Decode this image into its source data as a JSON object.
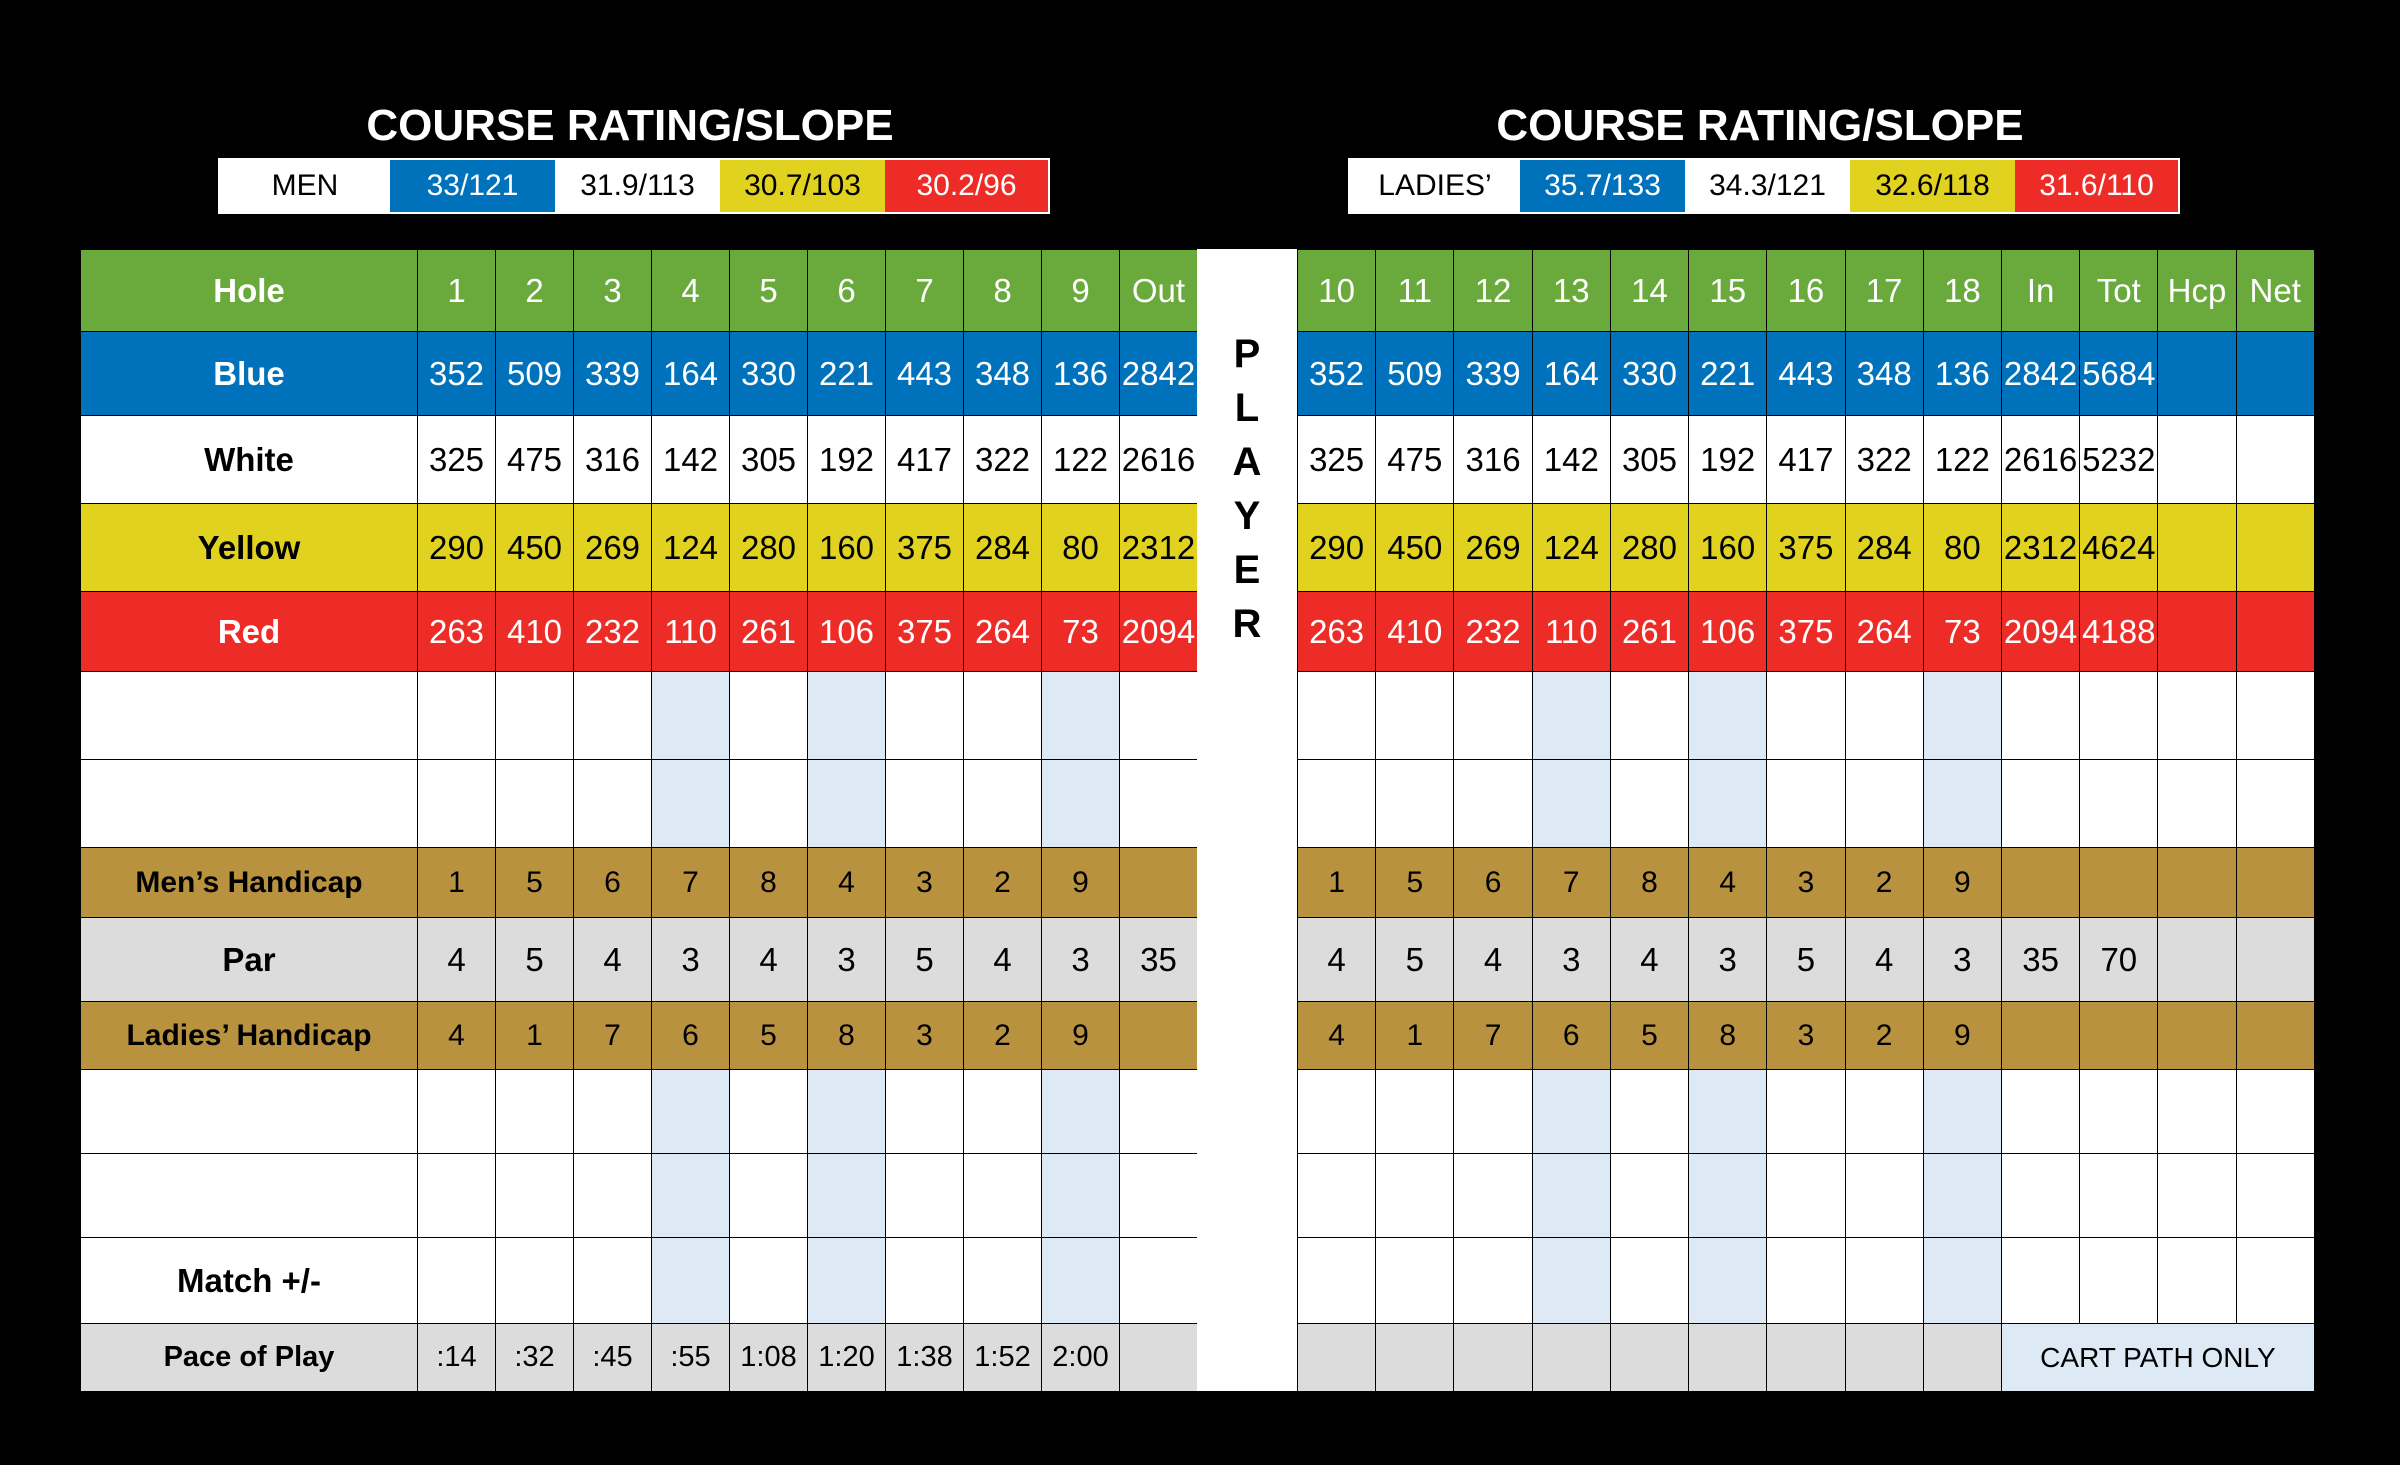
{
  "ratings": {
    "title": "COURSE RATING/SLOPE",
    "men": {
      "label": "MEN",
      "values": [
        "33/121",
        "31.9/113",
        "30.7/103",
        "30.2/96"
      ]
    },
    "ladies": {
      "label": "LADIES’",
      "values": [
        "35.7/133",
        "34.3/121",
        "32.6/118",
        "31.6/110"
      ]
    },
    "colors": [
      "#0071bb",
      "#ffffff",
      "#e0d21f",
      "#ee2c27"
    ]
  },
  "player_label": [
    "P",
    "L",
    "A",
    "Y",
    "E",
    "R"
  ],
  "front": {
    "holes": [
      "1",
      "2",
      "3",
      "4",
      "5",
      "6",
      "7",
      "8",
      "9",
      "Out"
    ],
    "rows": {
      "hole_label": "Hole",
      "blue": {
        "label": "Blue",
        "values": [
          "352",
          "509",
          "339",
          "164",
          "330",
          "221",
          "443",
          "348",
          "136",
          "2842"
        ]
      },
      "white": {
        "label": "White",
        "values": [
          "325",
          "475",
          "316",
          "142",
          "305",
          "192",
          "417",
          "322",
          "122",
          "2616"
        ]
      },
      "yellow": {
        "label": "Yellow",
        "values": [
          "290",
          "450",
          "269",
          "124",
          "280",
          "160",
          "375",
          "284",
          "80",
          "2312"
        ]
      },
      "red": {
        "label": "Red",
        "values": [
          "263",
          "410",
          "232",
          "110",
          "261",
          "106",
          "375",
          "264",
          "73",
          "2094"
        ]
      },
      "mens_hcp": {
        "label": "Men’s Handicap",
        "values": [
          "1",
          "5",
          "6",
          "7",
          "8",
          "4",
          "3",
          "2",
          "9",
          ""
        ]
      },
      "par": {
        "label": "Par",
        "values": [
          "4",
          "5",
          "4",
          "3",
          "4",
          "3",
          "5",
          "4",
          "3",
          "35"
        ]
      },
      "ladies_hcp": {
        "label": "Ladies’ Handicap",
        "values": [
          "4",
          "1",
          "7",
          "6",
          "5",
          "8",
          "3",
          "2",
          "9",
          ""
        ]
      },
      "match": {
        "label": "Match +/-"
      },
      "pace": {
        "label": "Pace of Play",
        "values": [
          ":14",
          ":32",
          ":45",
          ":55",
          "1:08",
          "1:20",
          "1:38",
          "1:52",
          "2:00",
          ""
        ]
      }
    }
  },
  "back": {
    "holes": [
      "10",
      "11",
      "12",
      "13",
      "14",
      "15",
      "16",
      "17",
      "18",
      "In",
      "Tot",
      "Hcp",
      "Net"
    ],
    "rows": {
      "blue": [
        "352",
        "509",
        "339",
        "164",
        "330",
        "221",
        "443",
        "348",
        "136",
        "2842",
        "5684",
        "",
        ""
      ],
      "white": [
        "325",
        "475",
        "316",
        "142",
        "305",
        "192",
        "417",
        "322",
        "122",
        "2616",
        "5232",
        "",
        ""
      ],
      "yellow": [
        "290",
        "450",
        "269",
        "124",
        "280",
        "160",
        "375",
        "284",
        "80",
        "2312",
        "4624",
        "",
        ""
      ],
      "red": [
        "263",
        "410",
        "232",
        "110",
        "261",
        "106",
        "375",
        "264",
        "73",
        "2094",
        "4188",
        "",
        ""
      ],
      "mens_hcp": [
        "1",
        "5",
        "6",
        "7",
        "8",
        "4",
        "3",
        "2",
        "9",
        "",
        "",
        "",
        ""
      ],
      "par": [
        "4",
        "5",
        "4",
        "3",
        "4",
        "3",
        "5",
        "4",
        "3",
        "35",
        "70",
        "",
        ""
      ],
      "ladies_hcp": [
        "4",
        "1",
        "7",
        "6",
        "5",
        "8",
        "3",
        "2",
        "9",
        "",
        "",
        "",
        ""
      ],
      "cart_path": "CART PATH ONLY"
    }
  }
}
